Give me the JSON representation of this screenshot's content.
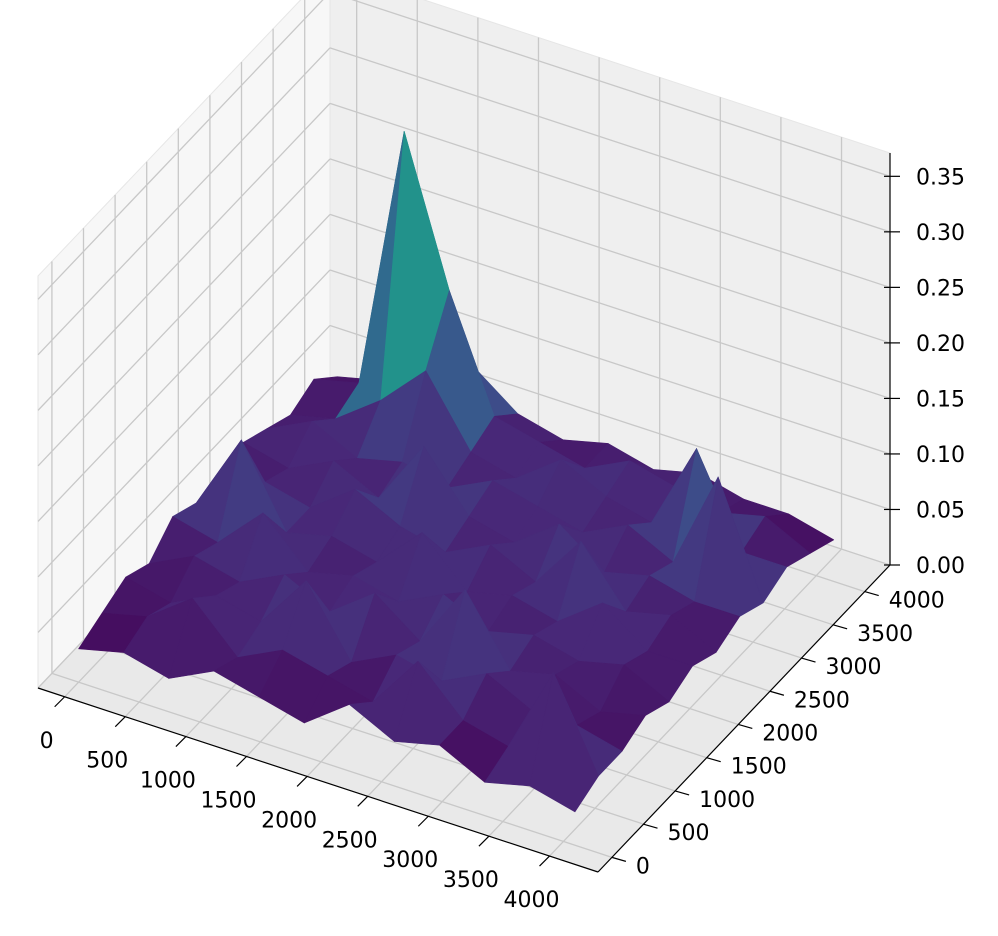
{
  "chart_data": {
    "type": "surface",
    "colormap": "viridis",
    "x": [
      0,
      372,
      745,
      1117,
      1489,
      1862,
      2234,
      2606,
      2979,
      3351,
      3723,
      4095
    ],
    "y": [
      0,
      372,
      745,
      1117,
      1489,
      1862,
      2234,
      2606,
      2979,
      3351,
      3723,
      4095
    ],
    "z": [
      [
        0.03,
        0.04,
        0.03,
        0.05,
        0.04,
        0.03,
        0.06,
        0.04,
        0.05,
        0.03,
        0.04,
        0.03
      ],
      [
        0.04,
        0.05,
        0.08,
        0.04,
        0.06,
        0.05,
        0.04,
        0.09,
        0.05,
        0.04,
        0.12,
        0.04
      ],
      [
        0.05,
        0.04,
        0.06,
        0.05,
        0.1,
        0.04,
        0.06,
        0.05,
        0.07,
        0.05,
        0.05,
        0.04
      ],
      [
        0.04,
        0.06,
        0.05,
        0.07,
        0.05,
        0.08,
        0.05,
        0.11,
        0.05,
        0.06,
        0.04,
        0.05
      ],
      [
        0.06,
        0.05,
        0.09,
        0.05,
        0.06,
        0.05,
        0.07,
        0.05,
        0.06,
        0.05,
        0.06,
        0.04
      ],
      [
        0.05,
        0.12,
        0.05,
        0.06,
        0.05,
        0.09,
        0.05,
        0.06,
        0.05,
        0.08,
        0.05,
        0.05
      ],
      [
        0.04,
        0.06,
        0.05,
        0.08,
        0.06,
        0.05,
        0.07,
        0.05,
        0.1,
        0.05,
        0.06,
        0.04
      ],
      [
        0.06,
        0.05,
        0.07,
        0.05,
        0.11,
        0.06,
        0.05,
        0.08,
        0.05,
        0.06,
        0.05,
        0.05
      ],
      [
        0.05,
        0.07,
        0.05,
        0.06,
        0.05,
        0.07,
        0.06,
        0.05,
        0.07,
        0.05,
        0.14,
        0.04
      ],
      [
        0.04,
        0.05,
        0.08,
        0.12,
        0.06,
        0.05,
        0.08,
        0.06,
        0.05,
        0.13,
        0.05,
        0.05
      ],
      [
        0.05,
        0.06,
        0.3,
        0.17,
        0.07,
        0.06,
        0.05,
        0.07,
        0.06,
        0.05,
        0.06,
        0.04
      ],
      [
        0.03,
        0.04,
        0.05,
        0.08,
        0.05,
        0.04,
        0.05,
        0.04,
        0.05,
        0.04,
        0.04,
        0.03
      ]
    ],
    "xlim": [
      -220,
      4400
    ],
    "ylim": [
      -220,
      4400
    ],
    "zlim": [
      0,
      0.371
    ],
    "xticks": [
      0,
      500,
      1000,
      1500,
      2000,
      2500,
      3000,
      3500,
      4000
    ],
    "yticks": [
      0,
      500,
      1000,
      1500,
      2000,
      2500,
      3000,
      3500,
      4000
    ],
    "zticks": [
      {
        "value": 0,
        "label": "0.00"
      },
      {
        "value": 0.05,
        "label": "0.05"
      },
      {
        "value": 0.1,
        "label": "0.10"
      },
      {
        "value": 0.15,
        "label": "0.15"
      },
      {
        "value": 0.2,
        "label": "0.20"
      },
      {
        "value": 0.25,
        "label": "0.25"
      },
      {
        "value": 0.3,
        "label": "0.30"
      },
      {
        "value": 0.35,
        "label": "0.35"
      }
    ],
    "grid": true
  }
}
